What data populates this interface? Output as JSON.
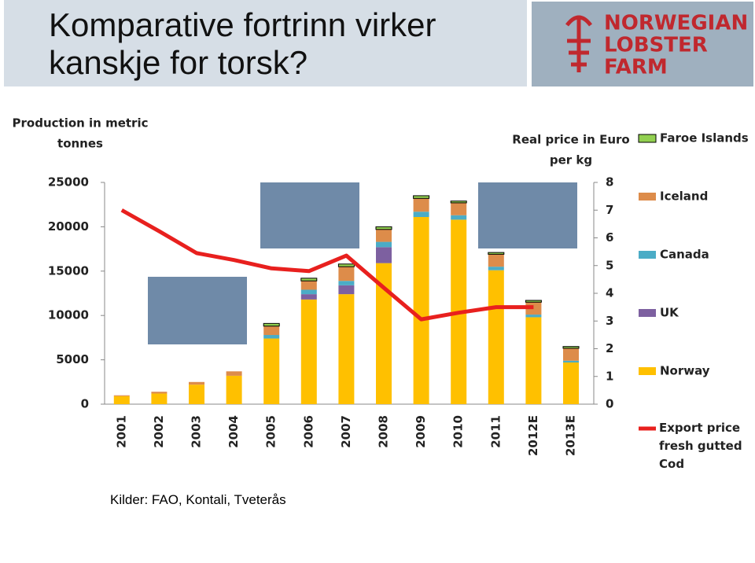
{
  "header": {
    "title": "Komparative fortrinn virker kanskje for torsk?",
    "logo": [
      "NORWEGIAN",
      "LOBSTER",
      "FARM"
    ]
  },
  "chart_data": {
    "type": "bar",
    "stacked": true,
    "ylabel": [
      "Production in metric",
      "tonnes"
    ],
    "y2label": [
      "Real price in Euro",
      "per kg"
    ],
    "categories": [
      "2001",
      "2002",
      "2003",
      "2004",
      "2005",
      "2006",
      "2007",
      "2008",
      "2009",
      "2010",
      "2011",
      "2012E",
      "2013E"
    ],
    "series": [
      {
        "name": "Norway",
        "color": "#ffc000",
        "values": [
          900,
          1200,
          2200,
          3200,
          7400,
          11800,
          12400,
          15900,
          21100,
          20800,
          15100,
          9800,
          4700
        ]
      },
      {
        "name": "UK",
        "color": "#7d60a0",
        "values": [
          0,
          0,
          0,
          0,
          0,
          600,
          1000,
          1800,
          0,
          0,
          0,
          0,
          0
        ]
      },
      {
        "name": "Canada",
        "color": "#4bacc6",
        "values": [
          0,
          0,
          0,
          0,
          400,
          500,
          500,
          600,
          600,
          500,
          400,
          300,
          200
        ]
      },
      {
        "name": "Iceland",
        "color": "#dd8c4a",
        "values": [
          100,
          200,
          300,
          500,
          1000,
          1000,
          1600,
          1400,
          1500,
          1400,
          1400,
          1400,
          1400
        ]
      },
      {
        "name": "Faroe Islands",
        "color": "#92d050",
        "values": [
          0,
          0,
          0,
          0,
          300,
          300,
          300,
          300,
          300,
          200,
          200,
          200,
          200
        ]
      },
      {
        "name": "Export price fresh gutted Cod",
        "color": "#e8201e",
        "axis": "y2",
        "type": "line",
        "values": [
          7.0,
          6.24,
          5.45,
          5.2,
          4.9,
          4.8,
          5.36,
          4.2,
          3.06,
          3.3,
          3.5,
          3.5,
          null
        ]
      }
    ],
    "ylim": [
      0,
      25000
    ],
    "yticks": [
      0,
      5000,
      10000,
      15000,
      20000,
      25000
    ],
    "y2lim": [
      0,
      8
    ],
    "y2ticks": [
      0,
      1,
      2,
      3,
      4,
      5,
      6,
      7,
      8
    ]
  },
  "footer": {
    "source": "Kilder:  FAO, Kontali, Tveterås"
  }
}
